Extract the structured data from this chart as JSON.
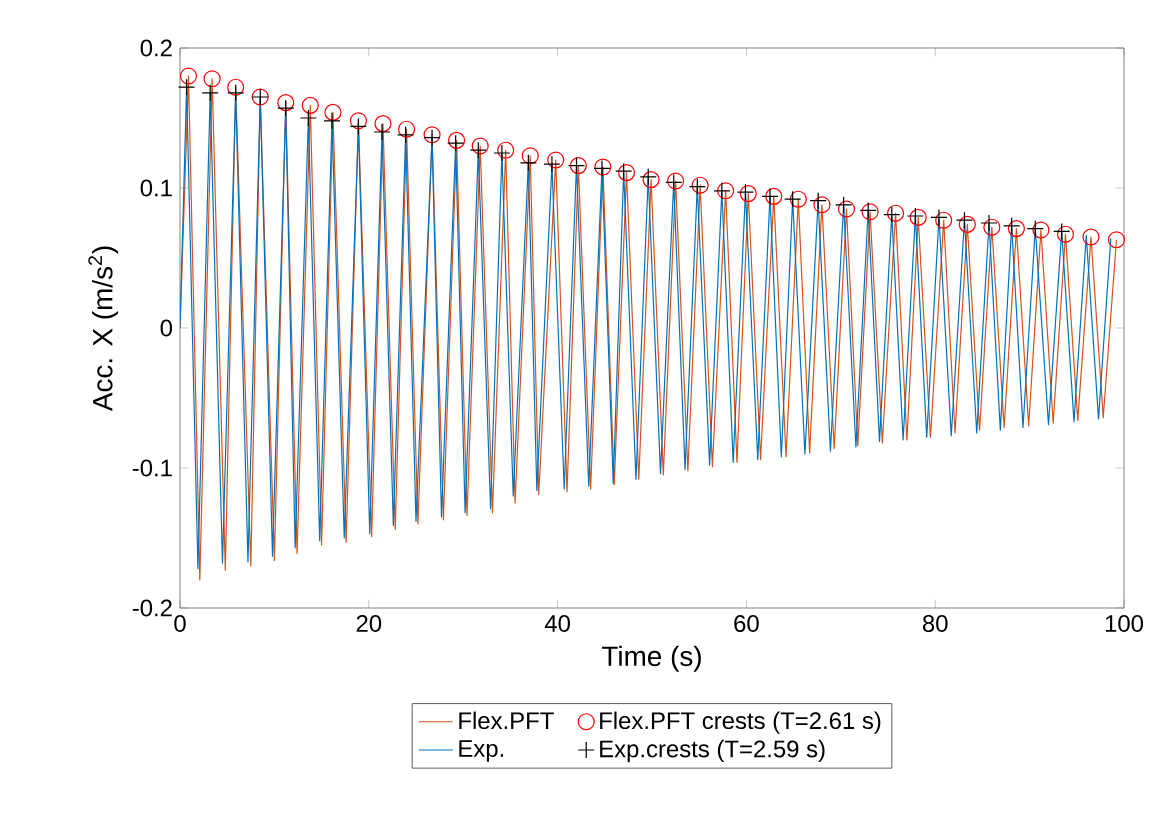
{
  "chart_data": {
    "type": "line",
    "xlabel": "Time (s)",
    "ylabel": "Acc. X (m/s$^{2}$)",
    "xlim": [
      0,
      100
    ],
    "ylim": [
      -0.2,
      0.2
    ],
    "xticks": [
      0,
      20,
      40,
      60,
      80,
      100
    ],
    "yticks": [
      -0.2,
      -0.1,
      0,
      0.1,
      0.2
    ],
    "grid": false,
    "legend": "bottom",
    "series": [
      {
        "name": "Flex.PFT",
        "color": "#d95319",
        "marker": "none",
        "x": [
          0,
          0.9,
          2.1,
          3.4,
          4.8,
          5.9,
          7.5,
          8.5,
          10.0,
          11.2,
          12.4,
          13.8,
          15.0,
          16.2,
          17.6,
          18.9,
          20.3,
          21.5,
          22.8,
          24.0,
          25.2,
          26.7,
          27.9,
          29.3,
          30.4,
          31.8,
          33.1,
          34.5,
          35.5,
          37.1,
          38.0,
          39.8,
          41.0,
          42.2,
          43.5,
          44.8,
          46.0,
          47.3,
          48.6,
          49.9,
          51.2,
          52.5,
          53.8,
          55.1,
          56.4,
          57.8,
          59.0,
          60.2,
          61.5,
          62.9,
          64.2,
          65.5,
          66.7,
          68.0,
          69.3,
          70.6,
          71.8,
          73.1,
          74.4,
          75.8,
          77.0,
          78.2,
          79.5,
          80.9,
          82.1,
          83.4,
          84.7,
          86.0,
          87.3,
          88.6,
          89.9,
          91.2,
          92.5,
          93.8,
          95.1,
          96.5,
          97.8,
          99.2
        ],
        "values": [
          0,
          0.18,
          -0.18,
          0.178,
          -0.173,
          0.172,
          -0.17,
          0.165,
          -0.166,
          0.161,
          -0.161,
          0.159,
          -0.155,
          0.154,
          -0.153,
          0.148,
          -0.149,
          0.146,
          -0.144,
          0.142,
          -0.14,
          0.138,
          -0.137,
          0.134,
          -0.134,
          0.13,
          -0.132,
          0.127,
          -0.125,
          0.123,
          -0.119,
          0.12,
          -0.117,
          0.116,
          -0.115,
          0.115,
          -0.112,
          0.111,
          -0.108,
          0.106,
          -0.105,
          0.105,
          -0.102,
          0.102,
          -0.099,
          0.098,
          -0.096,
          0.096,
          -0.094,
          0.094,
          -0.092,
          0.092,
          -0.089,
          0.088,
          -0.086,
          0.085,
          -0.084,
          0.083,
          -0.082,
          0.082,
          -0.08,
          0.079,
          -0.078,
          0.077,
          -0.075,
          0.074,
          -0.073,
          0.072,
          -0.071,
          0.071,
          -0.07,
          0.07,
          -0.068,
          0.067,
          -0.066,
          0.065,
          -0.064,
          0.063
        ]
      },
      {
        "name": "Flex.PFT crests (T=2.61 s)",
        "type": "scatter",
        "color": "#ff0000",
        "marker": "circle",
        "x": [
          0.9,
          3.4,
          5.9,
          8.5,
          11.2,
          13.8,
          16.2,
          18.9,
          21.5,
          24.0,
          26.7,
          29.3,
          31.8,
          34.5,
          37.1,
          39.8,
          42.2,
          44.8,
          47.3,
          49.9,
          52.5,
          55.1,
          57.8,
          60.2,
          62.9,
          65.5,
          68.0,
          70.6,
          73.1,
          75.8,
          78.2,
          80.9,
          83.4,
          86.0,
          88.6,
          91.2,
          93.8,
          96.5,
          99.2
        ],
        "values": [
          0.18,
          0.178,
          0.172,
          0.165,
          0.161,
          0.159,
          0.154,
          0.148,
          0.146,
          0.142,
          0.138,
          0.134,
          0.13,
          0.127,
          0.123,
          0.12,
          0.116,
          0.115,
          0.111,
          0.106,
          0.105,
          0.102,
          0.098,
          0.096,
          0.094,
          0.092,
          0.088,
          0.085,
          0.083,
          0.082,
          0.079,
          0.077,
          0.074,
          0.072,
          0.071,
          0.07,
          0.067,
          0.065,
          0.063
        ]
      },
      {
        "name": "Exp.",
        "color": "#0072bd",
        "marker": "none",
        "x": [
          0,
          0.7,
          1.9,
          3.2,
          4.5,
          5.9,
          7.2,
          8.5,
          9.8,
          11.2,
          12.2,
          13.6,
          14.8,
          16.1,
          17.4,
          18.9,
          20.1,
          21.4,
          22.6,
          23.9,
          25.0,
          26.7,
          27.7,
          29.2,
          30.2,
          31.6,
          32.9,
          34.1,
          35.3,
          36.9,
          37.8,
          39.4,
          40.7,
          42.0,
          43.3,
          44.7,
          45.9,
          47.0,
          48.3,
          49.6,
          50.9,
          52.3,
          53.5,
          54.8,
          56.1,
          57.4,
          58.6,
          59.9,
          61.2,
          62.5,
          63.7,
          64.9,
          66.2,
          67.6,
          68.9,
          70.3,
          71.6,
          72.9,
          74.1,
          75.4,
          76.6,
          77.9,
          79.1,
          80.4,
          81.7,
          83.1,
          84.4,
          85.7,
          86.9,
          88.1,
          89.3,
          90.6,
          92.0,
          93.4,
          94.7,
          96.0,
          97.3,
          98.6
        ],
        "values": [
          0,
          0.172,
          -0.172,
          0.168,
          -0.168,
          0.168,
          -0.167,
          0.165,
          -0.163,
          0.157,
          -0.157,
          0.15,
          -0.152,
          0.148,
          -0.15,
          0.144,
          -0.147,
          0.14,
          -0.141,
          0.138,
          -0.138,
          0.136,
          -0.135,
          0.132,
          -0.132,
          0.127,
          -0.129,
          0.125,
          -0.12,
          0.118,
          -0.116,
          0.117,
          -0.115,
          0.116,
          -0.113,
          0.114,
          -0.111,
          0.112,
          -0.108,
          0.108,
          -0.104,
          0.104,
          -0.101,
          0.101,
          -0.098,
          0.098,
          -0.096,
          0.097,
          -0.094,
          0.094,
          -0.092,
          0.092,
          -0.09,
          0.091,
          -0.088,
          0.088,
          -0.085,
          0.084,
          -0.081,
          0.081,
          -0.08,
          0.08,
          -0.078,
          0.079,
          -0.077,
          0.077,
          -0.075,
          0.075,
          -0.073,
          0.073,
          -0.071,
          0.071,
          -0.069,
          0.069,
          -0.067,
          0.066,
          -0.065,
          0.064
        ]
      },
      {
        "name": "Exp.crests (T=2.59 s)",
        "type": "scatter",
        "color": "#000000",
        "marker": "cross",
        "x": [
          0.7,
          3.2,
          5.9,
          8.5,
          11.2,
          13.6,
          16.1,
          18.9,
          21.4,
          23.9,
          26.7,
          29.2,
          31.6,
          34.1,
          36.9,
          39.4,
          42.0,
          44.7,
          47.0,
          49.6,
          52.3,
          54.8,
          57.4,
          59.9,
          62.5,
          64.9,
          67.6,
          70.3,
          72.9,
          75.4,
          77.9,
          80.4,
          83.1,
          85.7,
          88.1,
          90.6,
          93.4
        ],
        "values": [
          0.172,
          0.168,
          0.168,
          0.165,
          0.157,
          0.15,
          0.148,
          0.144,
          0.14,
          0.138,
          0.136,
          0.132,
          0.127,
          0.125,
          0.118,
          0.117,
          0.116,
          0.114,
          0.112,
          0.108,
          0.104,
          0.101,
          0.098,
          0.097,
          0.094,
          0.092,
          0.091,
          0.088,
          0.084,
          0.081,
          0.08,
          0.079,
          0.077,
          0.075,
          0.073,
          0.071,
          0.069
        ]
      }
    ]
  }
}
